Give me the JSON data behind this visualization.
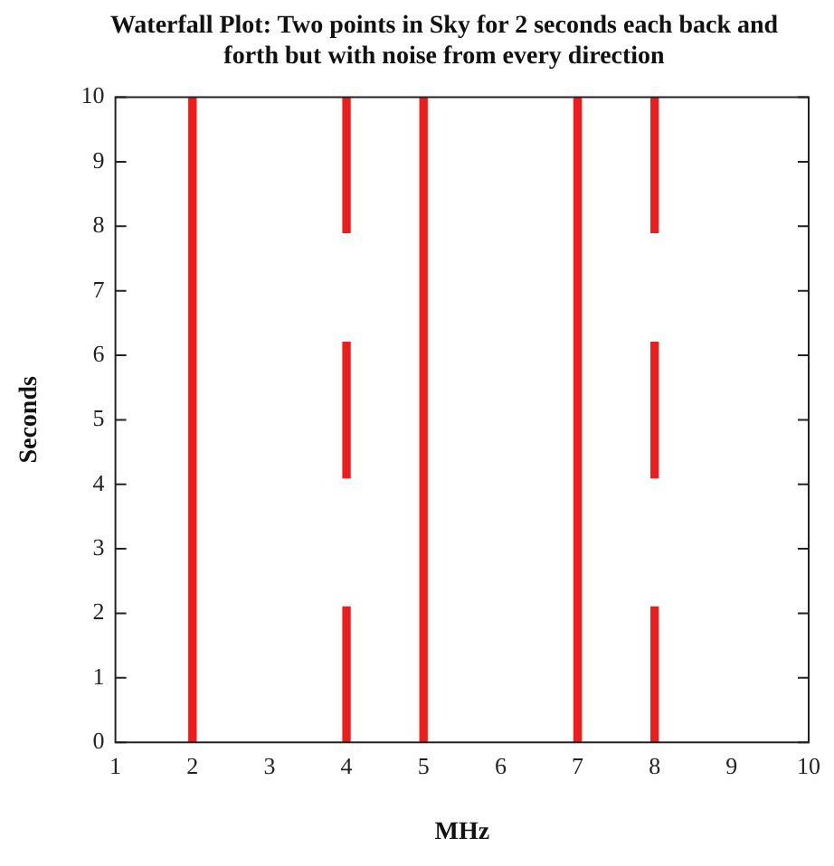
{
  "chart_data": {
    "type": "bar",
    "title": "Waterfall Plot: Two points in Sky for 2 seconds each back and forth but with noise from every direction",
    "xlabel": "MHz",
    "ylabel": "Seconds",
    "xlim": [
      1,
      10
    ],
    "xticks": [
      1,
      2,
      3,
      4,
      5,
      6,
      7,
      8,
      9,
      10
    ],
    "ylim": [
      0,
      10
    ],
    "yticks": [
      0,
      1,
      2,
      3,
      4,
      5,
      6,
      7,
      8,
      9,
      10
    ],
    "legend": false,
    "series": [
      {
        "color": "#ee1c1c",
        "x": [
          2,
          4,
          5,
          7,
          8
        ],
        "base": [
          0,
          0,
          0,
          0,
          0
        ],
        "values": [
          10,
          2.1,
          10,
          10,
          2.1
        ]
      },
      {
        "color": "#ee1c1c",
        "x": [
          4,
          8
        ],
        "base": [
          4.1,
          4.1
        ],
        "values": [
          2.1,
          2.1
        ]
      },
      {
        "color": "#ee1c1c",
        "x": [
          4,
          8
        ],
        "base": [
          7.9,
          7.9
        ],
        "values": [
          2.1,
          2.1
        ]
      }
    ]
  }
}
